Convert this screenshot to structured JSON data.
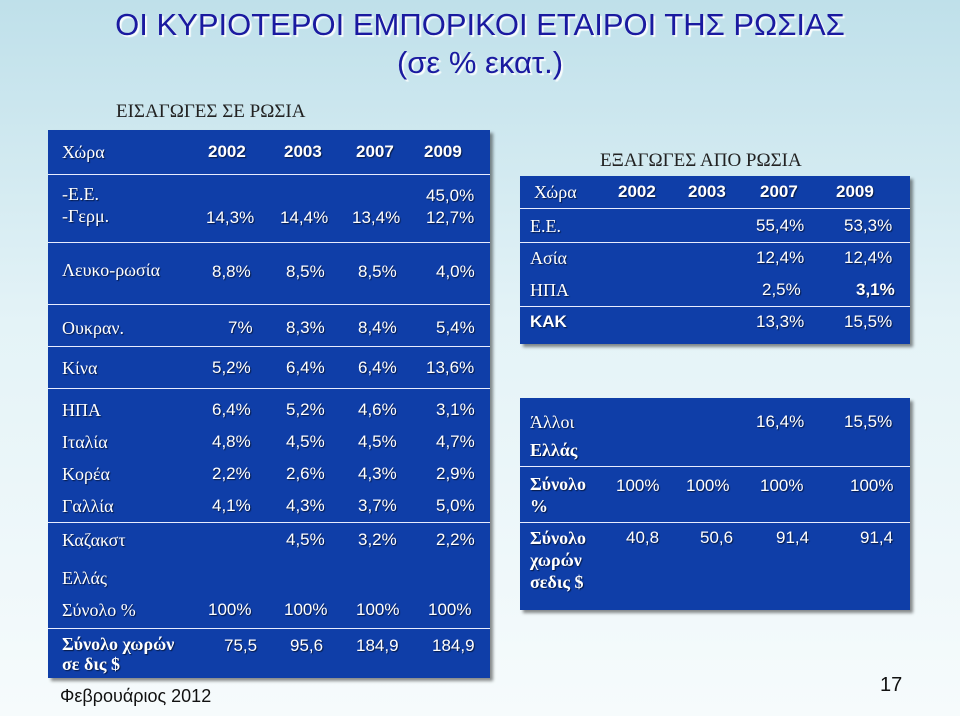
{
  "title": {
    "line1": "ΟΙ ΚΥΡΙΟΤΕΡΟΙ ΕΜΠΟΡΙΚΟΙ ΕΤΑΙΡΟΙ ΤΗΣ ΡΩΣΙΑΣ",
    "line2": "(σε % εκατ.)"
  },
  "imports": {
    "caption": "ΕΙΣΑΓΩΓΕΣ ΣΕ ΡΩΣΙΑ",
    "headers": [
      "Χώρα",
      "2002",
      "2003",
      "2007",
      "2009"
    ],
    "rows": [
      {
        "country": "-Ε.Ε.",
        "country2": "-Γερμ.",
        "v2002": "14,3%",
        "v2003": "14,4%",
        "v2007": "13,4%",
        "v2009": "45,0%",
        "v2009b": "12,7%"
      },
      {
        "country": "Λευκο-ρωσία",
        "v2002": "8,8%",
        "v2003": "8,5%",
        "v2007": "8,5%",
        "v2009": "4,0%"
      },
      {
        "country": "Ουκραν.",
        "v2002": "7%",
        "v2003": "8,3%",
        "v2007": "8,4%",
        "v2009": "5,4%"
      },
      {
        "country": "Κίνα",
        "v2002": "5,2%",
        "v2003": "6,4%",
        "v2007": "6,4%",
        "v2009": "13,6%"
      },
      {
        "country": "ΗΠΑ",
        "v2002": "6,4%",
        "v2003": "5,2%",
        "v2007": "4,6%",
        "v2009": "3,1%"
      },
      {
        "country": "Ιταλία",
        "v2002": "4,8%",
        "v2003": "4,5%",
        "v2007": "4,5%",
        "v2009": "4,7%"
      },
      {
        "country": "Κορέα",
        "v2002": "2,2%",
        "v2003": "2,6%",
        "v2007": "4,3%",
        "v2009": "2,9%"
      },
      {
        "country": "Γαλλία",
        "v2002": "4,1%",
        "v2003": "4,3%",
        "v2007": "3,7%",
        "v2009": "5,0%"
      },
      {
        "country": "Καζακστ",
        "v2003": "4,5%",
        "v2007": "3,2%",
        "v2009": "2,2%"
      },
      {
        "country": "Ελλάς"
      },
      {
        "country": "Σύνολο %",
        "v2002": "100%",
        "v2003": "100%",
        "v2007": "100%",
        "v2009": "100%"
      },
      {
        "country": "Σύνολο  χωρών",
        "country2": "σε δις $",
        "v2002": "75,5",
        "v2003": "95,6",
        "v2007": "184,9",
        "v2009": "184,9"
      }
    ]
  },
  "exports": {
    "caption": "ΕΞΑΓΩΓΕΣ ΑΠΟ ΡΩΣΙΑ",
    "headers": [
      "Χώρα",
      "2002",
      "2003",
      "2007",
      "2009"
    ],
    "rows": [
      {
        "country": "Ε.Ε.",
        "v2007": "55,4%",
        "v2009": "53,3%"
      },
      {
        "country": "Ασία",
        "v2007": "12,4%",
        "v2009": "12,4%"
      },
      {
        "country": "ΗΠΑ",
        "v2007": "2,5%",
        "v2009": "3,1%"
      },
      {
        "country": "ΚΑΚ",
        "v2007": "13,3%",
        "v2009": "15,5%"
      }
    ],
    "rows2": [
      {
        "country": "Άλλοι",
        "v2007": "16,4%",
        "v2009": "15,5%"
      },
      {
        "country": "Ελλάς"
      },
      {
        "country": "Σύνολο",
        "country2": "%",
        "v2002": "100%",
        "v2003": "100%",
        "v2007": "100%",
        "v2009": "100%"
      },
      {
        "country": "Σύνολο",
        "country2": "χωρών",
        "country3": "σεδις $",
        "v2002": "40,8",
        "v2003": "50,6",
        "v2007": "91,4",
        "v2009": "91,4"
      }
    ]
  },
  "footer": {
    "date": "Φεβρουάριος  2012",
    "page": "17"
  }
}
